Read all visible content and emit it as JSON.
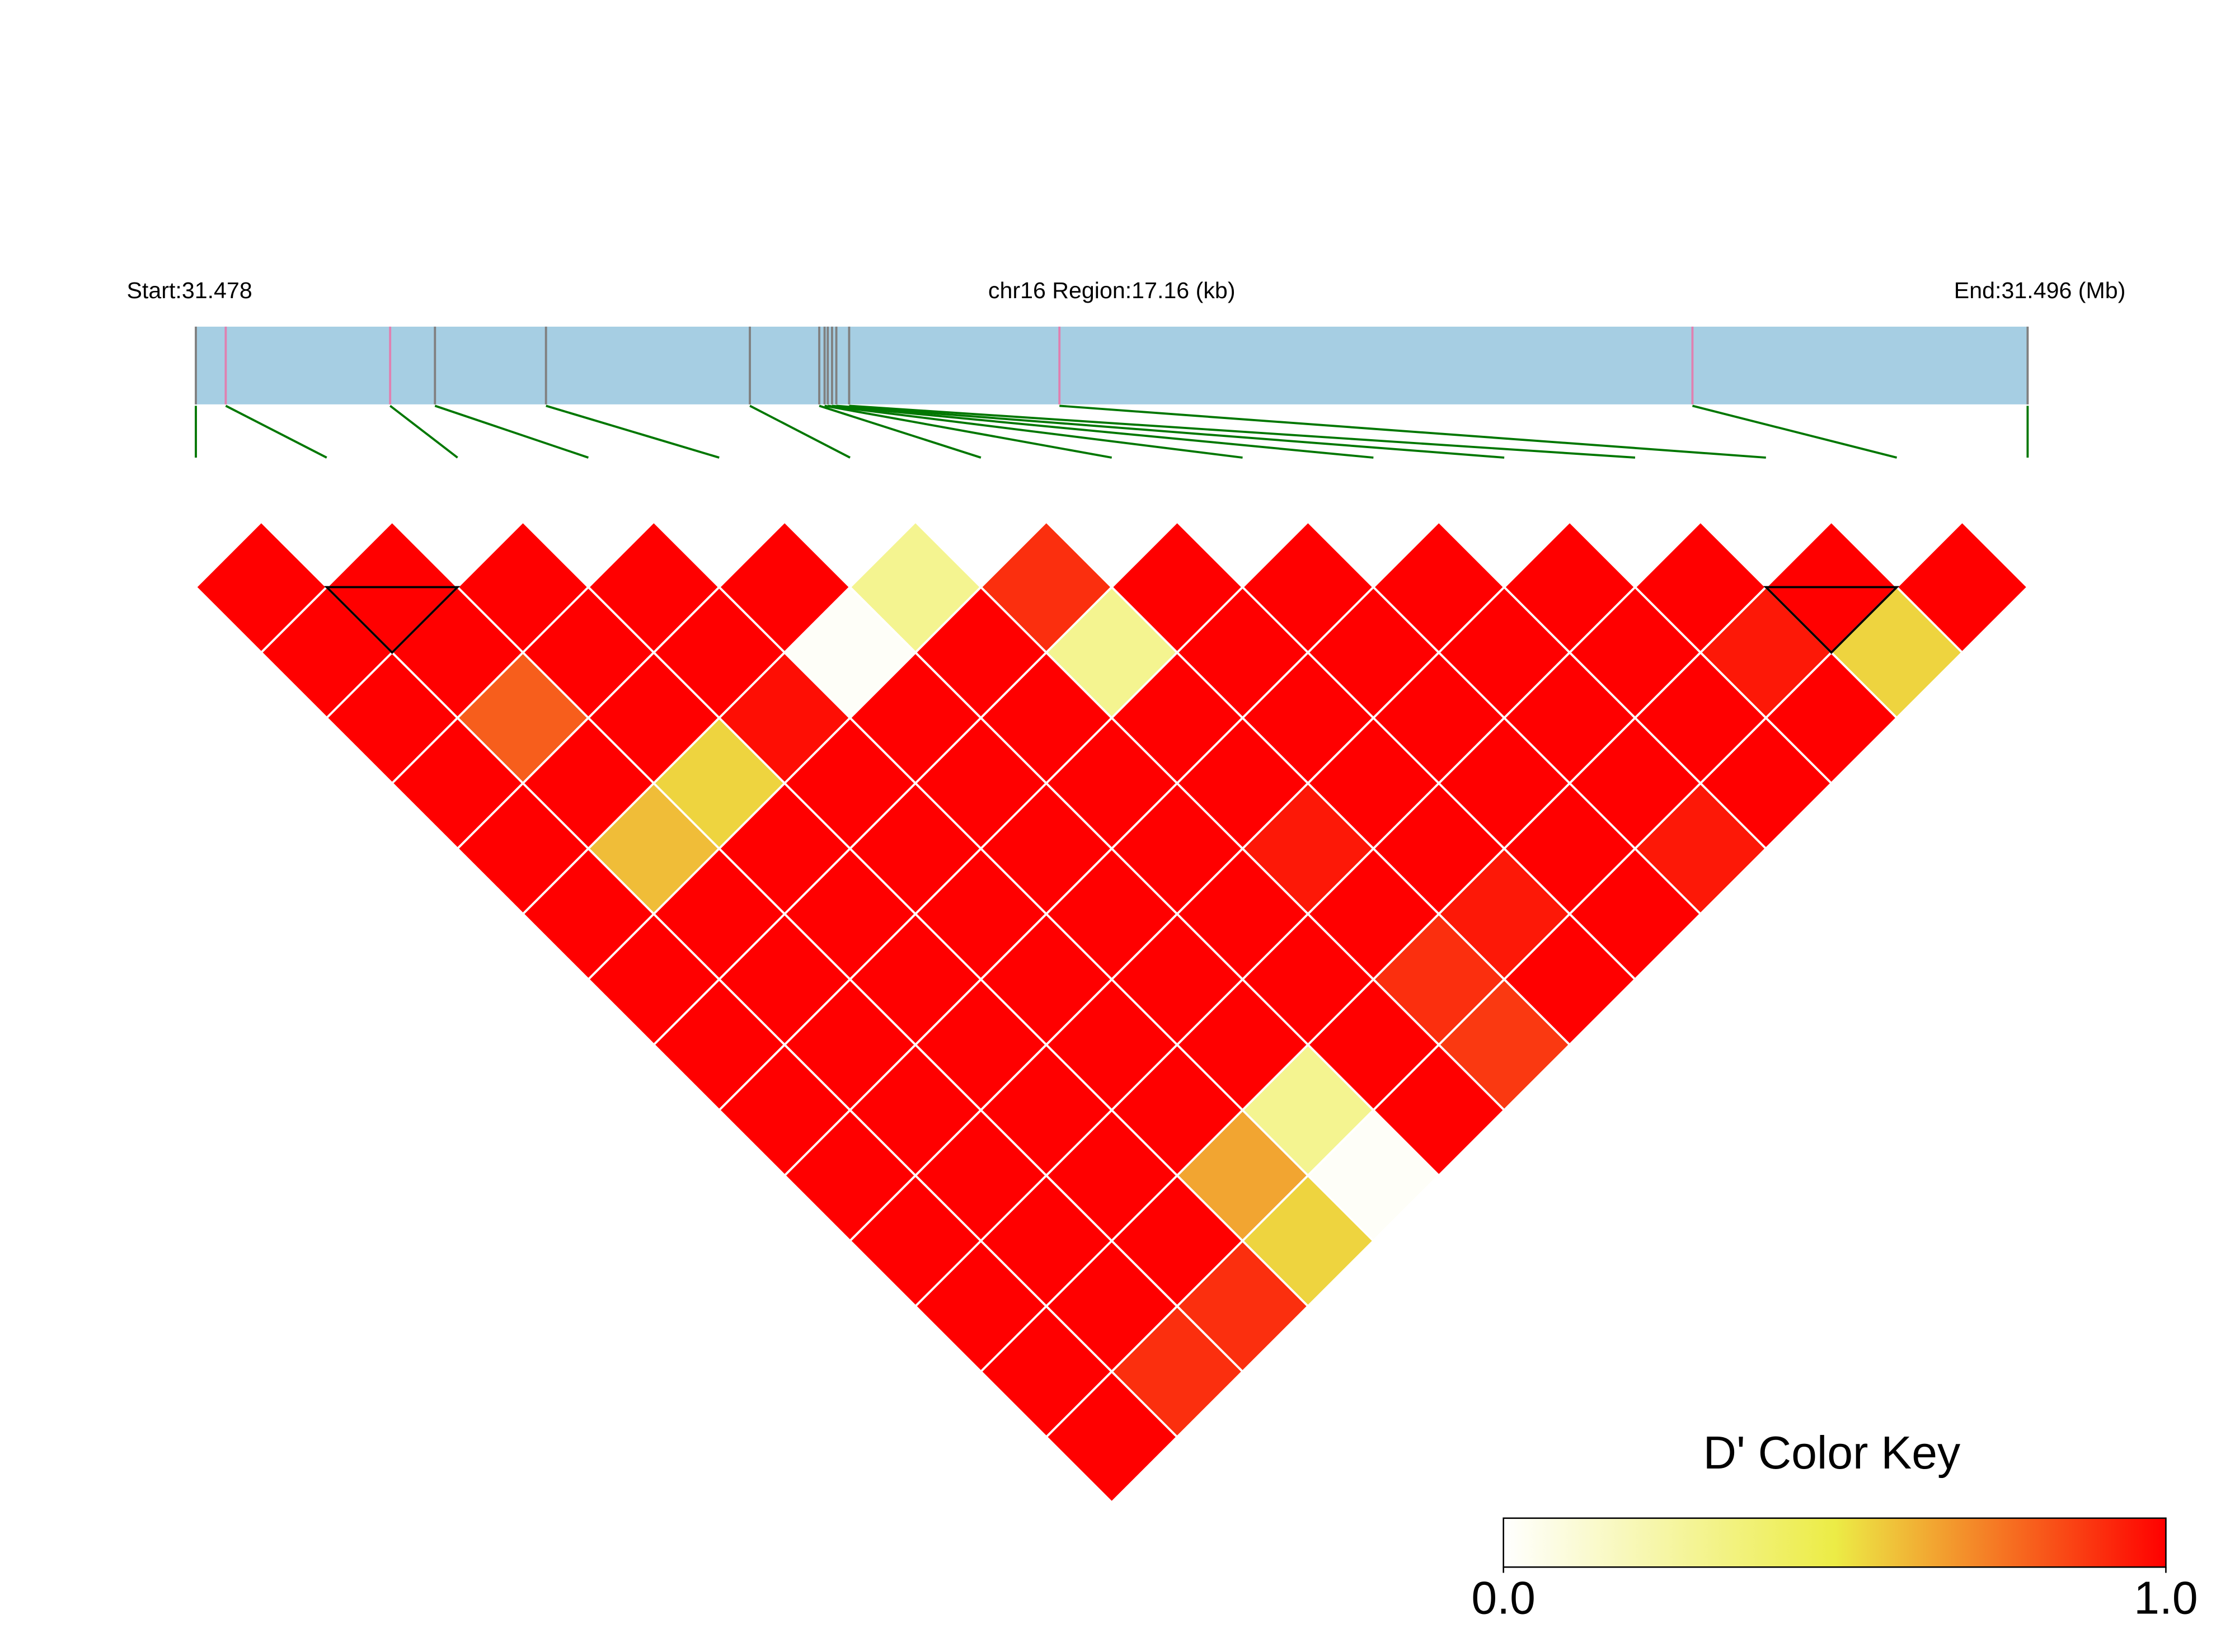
{
  "chart_data": {
    "type": "ld-heatmap",
    "start_label": "Start:31.478",
    "region_label": "chr16 Region:17.16 (kb)",
    "end_label": "End:31.496 (Mb)",
    "xlim": [
      0,
      17.16
    ],
    "snp_positions": [
      0,
      0.28,
      1.82,
      2.24,
      3.28,
      5.19,
      5.84,
      5.89,
      5.92,
      5.96,
      6.0,
      6.12,
      8.09,
      14.02,
      17.16
    ],
    "snp_colors": [
      "#808080",
      "#e080b0",
      "#e080b0",
      "#808080",
      "#808080",
      "#808080",
      "#808080",
      "#808080",
      "#808080",
      "#808080",
      "#808080",
      "#808080",
      "#e080b0",
      "#e080b0",
      "#808080"
    ],
    "region_color": "#a6cee3",
    "connector_color": "#007700",
    "dprime": [
      [
        1,
        1,
        1,
        1,
        1,
        1,
        1,
        1,
        1,
        1,
        1,
        1,
        1,
        1
      ],
      [
        1,
        1,
        0.8,
        1,
        0.6,
        1,
        1,
        1,
        1,
        1,
        1,
        1,
        0.9
      ],
      [
        1,
        1,
        1,
        0.55,
        1,
        1,
        1,
        1,
        1,
        1,
        1,
        0.9
      ],
      [
        1,
        1,
        0.97,
        1,
        1,
        1,
        1,
        1,
        1,
        0.65,
        0.55
      ],
      [
        1,
        0.02,
        1,
        1,
        1,
        1,
        1,
        1,
        0.3,
        0.02
      ],
      [
        0.3,
        1,
        1,
        1,
        1,
        1,
        1,
        1,
        1
      ],
      [
        0.9,
        0.3,
        1,
        1,
        0.95,
        1,
        0.9,
        0.88
      ],
      [
        1,
        1,
        1,
        1,
        1,
        0.95,
        1
      ],
      [
        1,
        1,
        1,
        1,
        1,
        1
      ],
      [
        1,
        1,
        1,
        1,
        0.95
      ],
      [
        1,
        1,
        1,
        1
      ],
      [
        1,
        0.95,
        1
      ],
      [
        1,
        0.55
      ],
      [
        1
      ]
    ],
    "blocks": [
      [
        1,
        2
      ],
      [
        12,
        13
      ]
    ],
    "colorscale": [
      "#ffffff",
      "#ecec46",
      "#ff0000"
    ],
    "key_title": "D' Color Key",
    "key_lim": [
      0,
      1
    ],
    "key_ticks": [
      {
        "value": 0,
        "label": "0.0"
      },
      {
        "value": 1,
        "label": "1.0"
      }
    ]
  }
}
